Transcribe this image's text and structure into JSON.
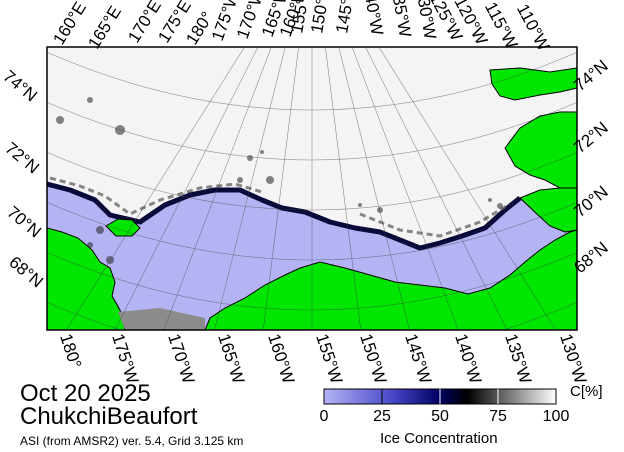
{
  "title": {
    "date": "Oct 20 2025",
    "region": "ChukchiBeaufort",
    "source": "ASI (from AMSR2) ver. 5.4,  Grid 3.125 km"
  },
  "top_lon_labels": [
    "160°E",
    "165°E",
    "170°E",
    "175°E",
    "180°",
    "175°W",
    "170°W",
    "165°W",
    "160°W",
    "155°W",
    "150°W",
    "145°W",
    "140°W",
    "135°W",
    "130°W",
    "125°W",
    "120°W",
    "115°W",
    "110°W"
  ],
  "bottom_lon_labels": [
    "180°",
    "175°W",
    "170°W",
    "165°W",
    "160°W",
    "155°W",
    "150°W",
    "145°W",
    "140°W",
    "135°W",
    "130°W"
  ],
  "left_lat_labels": [
    "74°N",
    "72°N",
    "70°N",
    "68°N"
  ],
  "right_lat_labels": [
    "74°N",
    "72°N",
    "70°N",
    "68°N"
  ],
  "colorbar": {
    "title": "Ice Concentration",
    "unit": "C[%]",
    "ticks": [
      "0",
      "25",
      "50",
      "75",
      "100"
    ],
    "tick_values": [
      0,
      25,
      50,
      75,
      100
    ],
    "range": [
      0,
      100
    ],
    "colors": {
      "open_water": "#b4b4f5",
      "mid": "#000055",
      "high": "#000000",
      "full": "#ffffff"
    }
  },
  "map_colors": {
    "land": "#00e600",
    "water": "#b4b4f5",
    "ice_full": "#f2f2f2",
    "no_data": "#8c8c8c",
    "grid": "#3c3c3c"
  }
}
